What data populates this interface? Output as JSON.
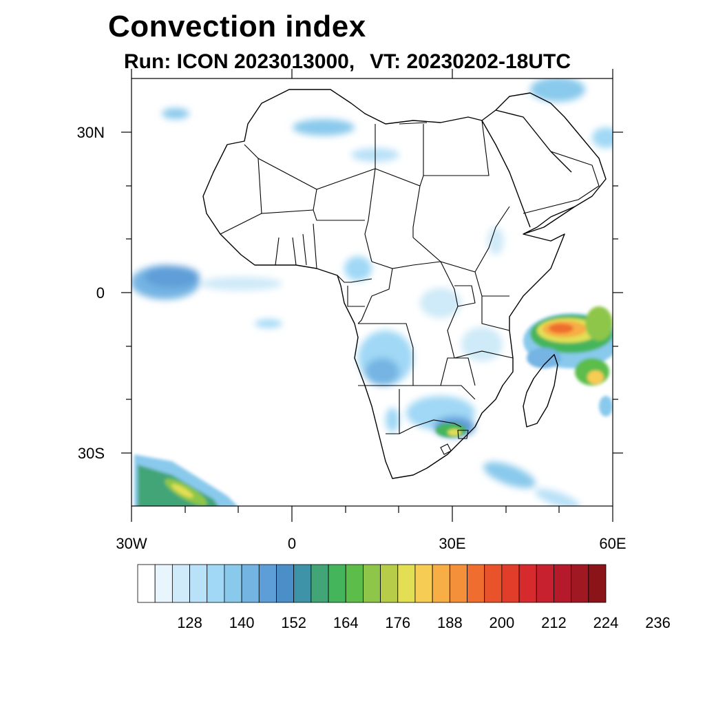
{
  "title": "Convection index",
  "subtitle": {
    "run": "Run: ICON 2023013000,",
    "vt": "VT: 20230202-18UTC"
  },
  "map": {
    "region": "Africa",
    "lon_range": [
      -30,
      60
    ],
    "lat_range": [
      -40,
      40
    ],
    "lat_ticks": [
      {
        "label": "30N",
        "lat": 30
      },
      {
        "label": "0",
        "lat": 0
      },
      {
        "label": "30S",
        "lat": -30
      }
    ],
    "lon_ticks": [
      {
        "label": "30W",
        "lon": -30
      },
      {
        "label": "0",
        "lon": 0
      },
      {
        "label": "30E",
        "lon": 30
      },
      {
        "label": "60E",
        "lon": 60
      }
    ],
    "minor_lat_step": 10,
    "minor_lon_step": 10
  },
  "colorbar": {
    "colors": [
      "#ffffff",
      "#e8f5fc",
      "#cfeaf8",
      "#b9e1f7",
      "#a0d8f5",
      "#89c9ec",
      "#74b4e3",
      "#5e9ed8",
      "#4a8fc8",
      "#3f93a8",
      "#42a578",
      "#45b55c",
      "#5cbd4b",
      "#8ec64a",
      "#b7cd4a",
      "#e2df55",
      "#f6cc55",
      "#f6ae45",
      "#f4903a",
      "#ef6e2f",
      "#e8532b",
      "#e23c2b",
      "#d62a2d",
      "#c72130",
      "#b51a2a",
      "#a01822",
      "#8a1418"
    ],
    "labels": [
      "128",
      "140",
      "152",
      "164",
      "176",
      "188",
      "200",
      "212",
      "224",
      "236"
    ]
  }
}
